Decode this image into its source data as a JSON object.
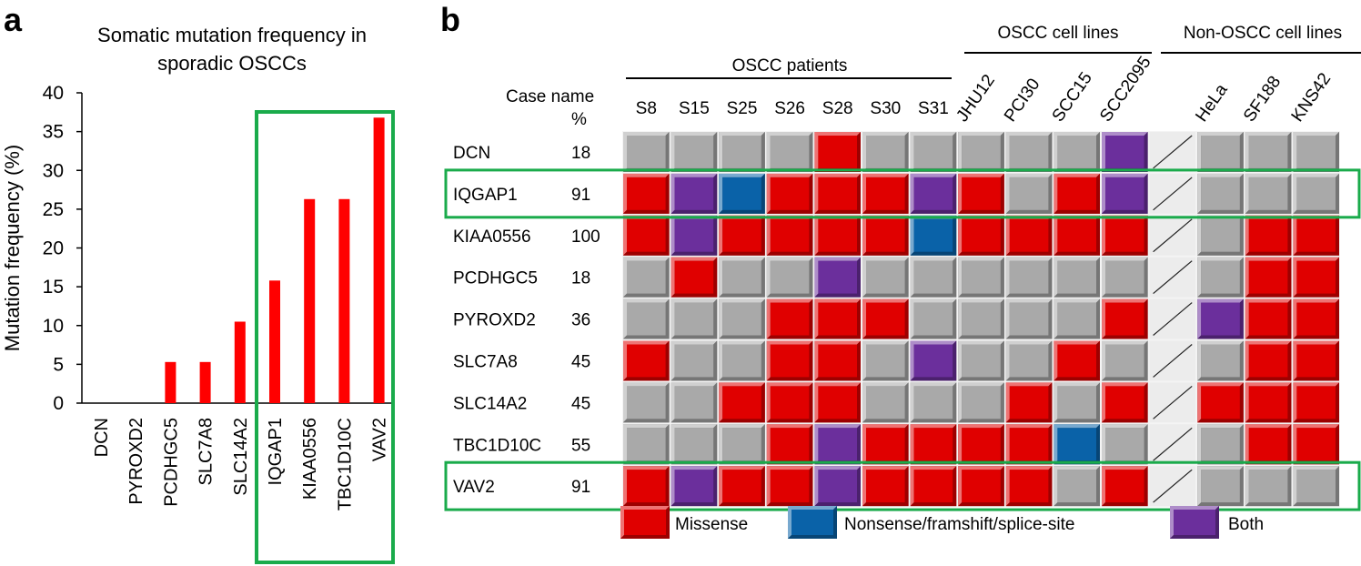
{
  "panel_a": {
    "letter": "a",
    "title_line1": "Somatic mutation frequency in",
    "title_line2": "sporadic OSCCs"
  },
  "panel_b": {
    "letter": "b",
    "case_name_label": "Case name",
    "percent_label": "%",
    "groups": [
      {
        "label": "OSCC patients",
        "columns": [
          "S8",
          "S15",
          "S25",
          "S26",
          "S28",
          "S30",
          "S31"
        ]
      },
      {
        "label": "OSCC cell lines",
        "columns": [
          "JHU12",
          "PCI30",
          "SCC15",
          "SCC2095"
        ]
      },
      {
        "label": "Non-OSCC cell lines",
        "columns": [
          "HeLa",
          "SF188",
          "KNS42"
        ]
      }
    ],
    "legend": [
      {
        "key": "M",
        "label": "Missense"
      },
      {
        "key": "N",
        "label": "Nonsense/framshift/splice-site"
      },
      {
        "key": "B",
        "label": "Both"
      }
    ],
    "colors": {
      "M": "#e00000",
      "N": "#0a62a8",
      "B": "#6b2f9c",
      "G": "#a9a9a9",
      "blank": "#ececec",
      "highlight": "#1aab4b"
    },
    "highlighted_rows": [
      "IQGAP1",
      "VAV2"
    ]
  },
  "chart_data": [
    {
      "type": "bar",
      "title": "Somatic mutation frequency in sporadic OSCCs",
      "xlabel": "",
      "ylabel": "Mutation frequency (%)",
      "ylim": [
        0,
        40
      ],
      "yticks": [
        0,
        5,
        10,
        15,
        20,
        25,
        30,
        35,
        40
      ],
      "categories": [
        "DCN",
        "PYROXD2",
        "PCDHGC5",
        "SLC7A8",
        "SLC14A2",
        "IQGAP1",
        "KIAA0556",
        "TBC1D10C",
        "VAV2"
      ],
      "values": [
        0,
        0,
        5.3,
        5.3,
        10.5,
        15.8,
        26.3,
        26.3,
        36.8
      ],
      "highlighted_categories": [
        "IQGAP1",
        "KIAA0556",
        "TBC1D10C",
        "VAV2"
      ]
    },
    {
      "type": "heatmap",
      "columns": [
        "S8",
        "S15",
        "S25",
        "S26",
        "S28",
        "S30",
        "S31",
        "JHU12",
        "PCI30",
        "SCC15",
        "SCC2095",
        "",
        "HeLa",
        "SF188",
        "KNS42"
      ],
      "rows": [
        {
          "gene": "DCN",
          "percent": "18",
          "cells": [
            "G",
            "G",
            "G",
            "G",
            "M",
            "G",
            "G",
            "G",
            "G",
            "G",
            "B",
            "X",
            "G",
            "G",
            "G"
          ]
        },
        {
          "gene": "IQGAP1",
          "percent": "91",
          "cells": [
            "M",
            "B",
            "N",
            "M",
            "M",
            "M",
            "B",
            "M",
            "G",
            "M",
            "B",
            "X",
            "G",
            "G",
            "G"
          ]
        },
        {
          "gene": "KIAA0556",
          "percent": "100",
          "cells": [
            "M",
            "B",
            "M",
            "M",
            "M",
            "M",
            "N",
            "M",
            "M",
            "M",
            "M",
            "X",
            "G",
            "M",
            "M"
          ]
        },
        {
          "gene": "PCDHGC5",
          "percent": "18",
          "cells": [
            "G",
            "M",
            "G",
            "G",
            "B",
            "G",
            "G",
            "G",
            "G",
            "G",
            "G",
            "X",
            "G",
            "M",
            "M"
          ]
        },
        {
          "gene": "PYROXD2",
          "percent": "36",
          "cells": [
            "G",
            "G",
            "G",
            "M",
            "M",
            "M",
            "G",
            "G",
            "G",
            "G",
            "M",
            "X",
            "B",
            "M",
            "M"
          ]
        },
        {
          "gene": "SLC7A8",
          "percent": "45",
          "cells": [
            "M",
            "G",
            "G",
            "M",
            "M",
            "G",
            "B",
            "G",
            "G",
            "M",
            "G",
            "X",
            "G",
            "M",
            "M"
          ]
        },
        {
          "gene": "SLC14A2",
          "percent": "45",
          "cells": [
            "G",
            "G",
            "M",
            "M",
            "M",
            "G",
            "G",
            "G",
            "M",
            "G",
            "M",
            "X",
            "M",
            "M",
            "M"
          ]
        },
        {
          "gene": "TBC1D10C",
          "percent": "55",
          "cells": [
            "G",
            "G",
            "G",
            "M",
            "B",
            "M",
            "M",
            "M",
            "M",
            "N",
            "G",
            "X",
            "G",
            "M",
            "M"
          ]
        },
        {
          "gene": "VAV2",
          "percent": "91",
          "cells": [
            "M",
            "B",
            "M",
            "M",
            "B",
            "M",
            "M",
            "M",
            "M",
            "G",
            "M",
            "X",
            "G",
            "G",
            "G"
          ]
        }
      ],
      "legend": {
        "M": "Missense",
        "N": "Nonsense/framshift/splice-site",
        "B": "Both"
      }
    }
  ]
}
